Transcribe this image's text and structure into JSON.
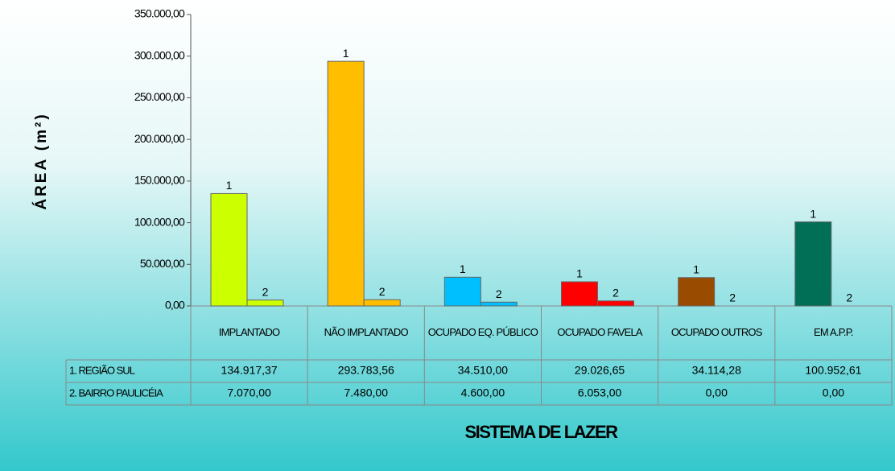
{
  "chart_data": {
    "type": "bar",
    "ylabel": "ÁREA (m²)",
    "xlabel": "SISTEMA DE LAZER",
    "categories": [
      "IMPLANTADO",
      "NÃO IMPLANTADO",
      "OCUPADO EQ. PÚBLICO",
      "OCUPADO FAVELA",
      "OCUPADO OUTROS",
      "EM A.P.P."
    ],
    "colors": [
      "#ccff00",
      "#ffbf00",
      "#00bfff",
      "#ff0000",
      "#994c00",
      "#006f55"
    ],
    "series": [
      {
        "name": "1. REGIÃO SUL",
        "label": "1",
        "values": [
          134917.37,
          293783.56,
          34510,
          29026.65,
          34114.28,
          100952.61
        ],
        "value_labels": [
          "134.917,37",
          "293.783,56",
          "34.510,00",
          "29.026,65",
          "34.114,28",
          "100.952,61"
        ]
      },
      {
        "name": "2. BAIRRO PAULICÉIA",
        "label": "2",
        "values": [
          7070,
          7480,
          4600,
          6053,
          0,
          0
        ],
        "value_labels": [
          "7.070,00",
          "7.480,00",
          "4.600,00",
          "6.053,00",
          "0,00",
          "0,00"
        ]
      }
    ],
    "ylim": [
      0,
      350000
    ],
    "yticks": [
      {
        "value": 0,
        "label": "0,00"
      },
      {
        "value": 50000,
        "label": "50.000,00"
      },
      {
        "value": 100000,
        "label": "100.000,00"
      },
      {
        "value": 150000,
        "label": "150.000,00"
      },
      {
        "value": 200000,
        "label": "200.000,00"
      },
      {
        "value": 250000,
        "label": "250.000,00"
      },
      {
        "value": 300000,
        "label": "300.000,00"
      },
      {
        "value": 350000,
        "label": "350.000,00"
      }
    ],
    "grid": false
  }
}
